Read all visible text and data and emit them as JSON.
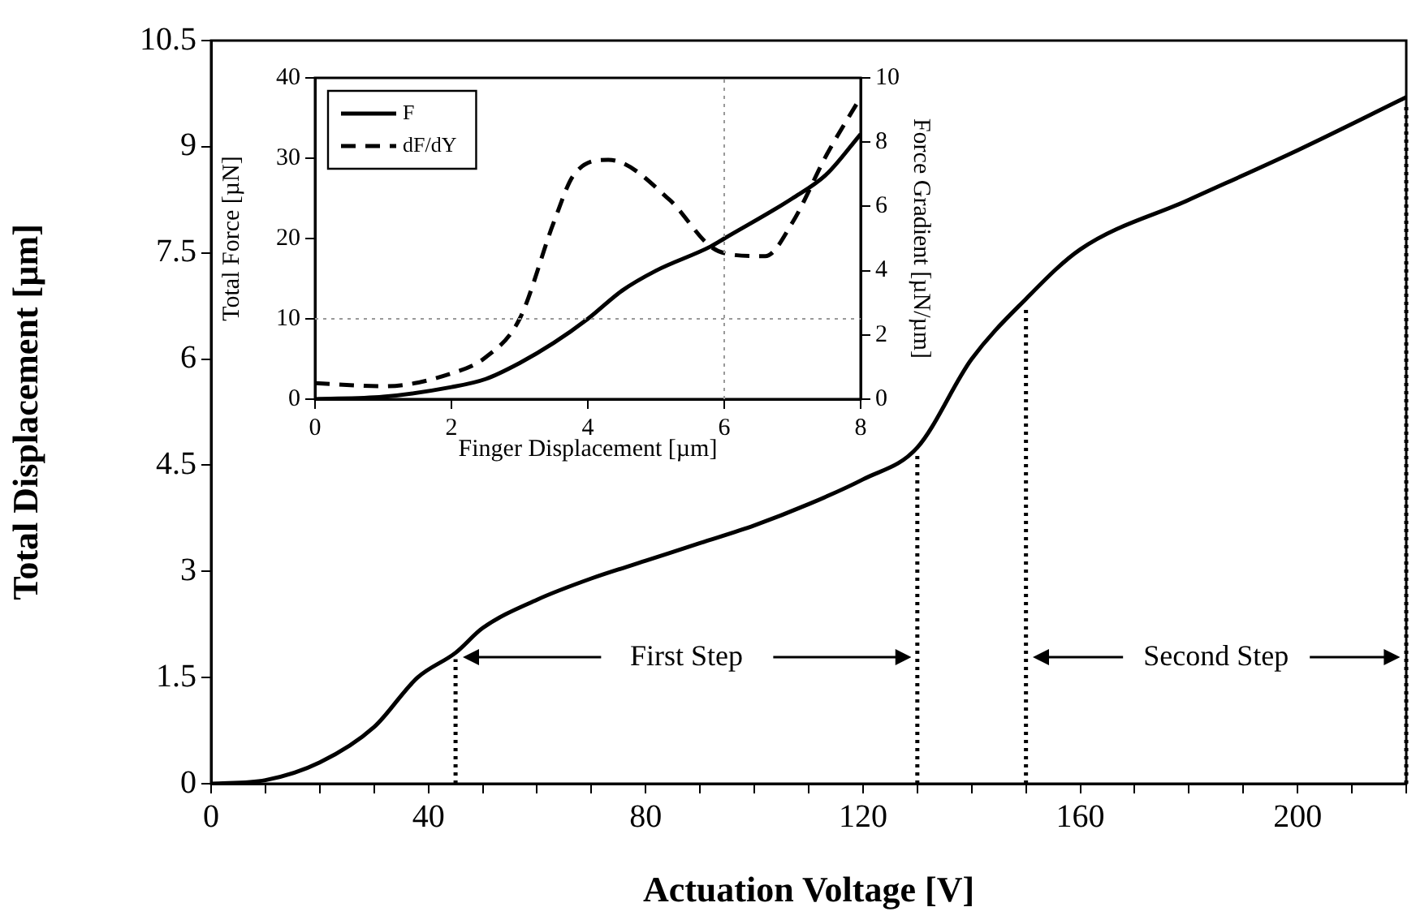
{
  "chart_data": [
    {
      "type": "line",
      "xlabel": "Actuation Voltage [V]",
      "ylabel": "Total Displacement [µm]",
      "x": [
        0,
        10,
        20,
        30,
        38,
        45,
        50,
        60,
        70,
        80,
        90,
        100,
        110,
        120,
        130,
        140,
        150,
        160,
        180,
        200,
        220
      ],
      "series": [
        {
          "color": "#000000",
          "values": [
            0,
            0.05,
            0.3,
            0.8,
            1.5,
            1.85,
            2.2,
            2.6,
            2.9,
            3.15,
            3.4,
            3.65,
            3.95,
            4.3,
            4.75,
            6.0,
            6.85,
            7.55,
            8.25,
            8.95,
            9.7
          ]
        }
      ],
      "xlim": [
        0,
        220
      ],
      "xticks": [
        0,
        {
          "value": 10,
          "label": null
        },
        {
          "value": 20,
          "label": null
        },
        {
          "value": 30,
          "label": null
        },
        40,
        {
          "value": 50,
          "label": null
        },
        {
          "value": 60,
          "label": null
        },
        {
          "value": 70,
          "label": null
        },
        80,
        {
          "value": 90,
          "label": null
        },
        {
          "value": 100,
          "label": null
        },
        {
          "value": 110,
          "label": null
        },
        120,
        {
          "value": 130,
          "label": null
        },
        {
          "value": 140,
          "label": null
        },
        {
          "value": 150,
          "label": null
        },
        160,
        {
          "value": 170,
          "label": null
        },
        {
          "value": 180,
          "label": null
        },
        {
          "value": 190,
          "label": null
        },
        200,
        {
          "value": 210,
          "label": null
        },
        {
          "value": 220,
          "label": null
        }
      ],
      "ylim": [
        0,
        10.5
      ],
      "yticks": [
        0,
        1.5,
        3,
        4.5,
        6,
        7.5,
        9,
        10.5
      ],
      "ref_lines": [
        {
          "axis": "x",
          "value": 45,
          "line_style": "dotted"
        },
        {
          "axis": "x",
          "value": 130,
          "line_style": "dotted"
        },
        {
          "axis": "x",
          "value": 150,
          "line_style": "dotted"
        },
        {
          "axis": "x",
          "value": 220,
          "line_style": "dotted"
        }
      ],
      "annotations": [
        "First Step",
        "Second Step"
      ]
    },
    {
      "type": "line",
      "xlabel": "Finger Displacement [µm]",
      "ylabel": "Total Force [µN]",
      "y2label": "Force Gradient [µN/µm]",
      "series": [
        {
          "name": "F",
          "color": "#000000",
          "x": [
            0,
            1,
            2,
            2.5,
            3,
            3.5,
            4,
            4.5,
            5,
            5.8,
            6,
            7,
            7.5,
            8
          ],
          "values": [
            0,
            0.3,
            1.5,
            2.5,
            4.5,
            7,
            10,
            13.5,
            16,
            19,
            20,
            25,
            28,
            33
          ]
        },
        {
          "name": "dF/dY",
          "color": "#000000",
          "axis": "y2",
          "line_style": "dashed",
          "x": [
            0,
            1,
            2,
            2.5,
            3,
            3.5,
            3.8,
            4.3,
            5.2,
            5.8,
            6.1,
            6.6,
            7,
            7.5,
            8
          ],
          "values": [
            0.5,
            0.4,
            0.8,
            1.3,
            2.5,
            5.5,
            7,
            7.45,
            6.2,
            4.75,
            4.5,
            4.45,
            5.5,
            7.6,
            9.4
          ]
        }
      ],
      "xlim": [
        0,
        8
      ],
      "xticks": [
        0,
        2,
        4,
        6,
        8
      ],
      "ylim": [
        0,
        40
      ],
      "yticks": [
        0,
        10,
        20,
        30,
        40
      ],
      "y2lim": [
        0,
        10
      ],
      "y2ticks": [
        0,
        2,
        4,
        6,
        8,
        10
      ],
      "ref_lines": [
        {
          "axis": "x",
          "value": 6,
          "color": "#999999",
          "line_style": "dotted"
        },
        {
          "axis": "y",
          "value": 10,
          "color": "#999999",
          "line_style": "dotted"
        }
      ],
      "legend": "top left"
    }
  ]
}
